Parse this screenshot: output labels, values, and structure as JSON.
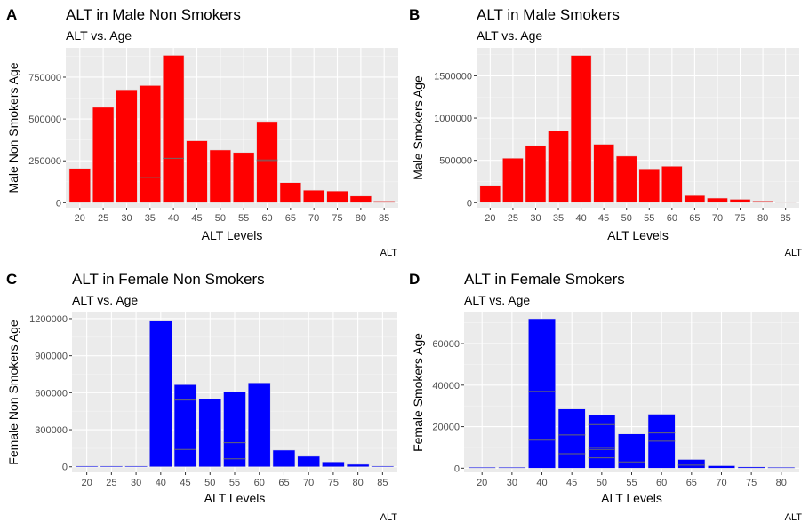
{
  "chart_data": [
    {
      "tag": "A",
      "type": "bar",
      "title": "ALT in Male Non Smokers",
      "subtitle": "ALT vs. Age",
      "xlabel": "ALT Levels",
      "ylabel": "Male Non Smokers Age",
      "caption": "ALT",
      "fill_color": "#ff0000",
      "categories": [
        "20",
        "25",
        "30",
        "35",
        "40",
        "45",
        "50",
        "55",
        "60",
        "65",
        "70",
        "75",
        "80",
        "85"
      ],
      "values": [
        205000,
        570000,
        675000,
        700000,
        880000,
        370000,
        315000,
        300000,
        485000,
        120000,
        75000,
        70000,
        40000,
        10000
      ],
      "ylim": [
        -30000,
        925000
      ],
      "yticks": [
        0,
        250000,
        500000,
        750000
      ],
      "ytick_labels": [
        "0",
        "250000",
        "500000",
        "750000"
      ],
      "inner_lines": [
        [
          3,
          150000
        ],
        [
          4,
          265000
        ],
        [
          8,
          245000
        ],
        [
          8,
          255000
        ]
      ],
      "grid": true
    },
    {
      "tag": "B",
      "type": "bar",
      "title": "ALT in Male Smokers",
      "subtitle": "ALT vs. Age",
      "xlabel": "ALT Levels",
      "ylabel": "Male Smokers Age",
      "caption": "ALT",
      "fill_color": "#ff0000",
      "categories": [
        "20",
        "25",
        "30",
        "35",
        "40",
        "45",
        "50",
        "55",
        "60",
        "65",
        "70",
        "75",
        "80",
        "85"
      ],
      "values": [
        205000,
        525000,
        675000,
        850000,
        1740000,
        690000,
        550000,
        400000,
        430000,
        85000,
        55000,
        40000,
        20000,
        8000
      ],
      "ylim": [
        -60000,
        1830000
      ],
      "yticks": [
        0,
        500000,
        1000000,
        1500000
      ],
      "ytick_labels": [
        "0",
        "500000",
        "1000000",
        "1500000"
      ],
      "inner_lines": [],
      "grid": true
    },
    {
      "tag": "C",
      "type": "bar",
      "title": "ALT in Female Non Smokers",
      "subtitle": "ALT vs. Age",
      "xlabel": "ALT Levels",
      "ylabel": "Female Non Smokers Age",
      "caption": "ALT",
      "fill_color": "#0000ff",
      "categories": [
        "20",
        "25",
        "30",
        "40",
        "45",
        "50",
        "55",
        "60",
        "65",
        "70",
        "75",
        "80",
        "85"
      ],
      "values": [
        3000,
        3000,
        3000,
        1180000,
        665000,
        550000,
        608000,
        680000,
        135000,
        85000,
        40000,
        20000,
        3000
      ],
      "ylim": [
        -45000,
        1250000
      ],
      "yticks": [
        0,
        300000,
        600000,
        900000,
        1200000
      ],
      "ytick_labels": [
        "0",
        "300000",
        "600000",
        "900000",
        "1200000"
      ],
      "inner_lines": [
        [
          4,
          540000
        ],
        [
          4,
          140000
        ],
        [
          6,
          195000
        ],
        [
          6,
          65000
        ]
      ],
      "grid": true
    },
    {
      "tag": "D",
      "type": "bar",
      "title": "ALT in Female Smokers",
      "subtitle": "ALT vs. Age",
      "xlabel": "ALT Levels",
      "ylabel": "Female Smokers Age",
      "caption": "ALT",
      "fill_color": "#0000ff",
      "categories": [
        "20",
        "30",
        "40",
        "45",
        "50",
        "55",
        "60",
        "65",
        "70",
        "75",
        "80"
      ],
      "values": [
        200,
        200,
        72000,
        28500,
        25500,
        16500,
        26000,
        4200,
        1200,
        600,
        200
      ],
      "ylim": [
        -2000,
        75000
      ],
      "yticks": [
        0,
        20000,
        40000,
        60000
      ],
      "ytick_labels": [
        "0",
        "20000",
        "40000",
        "60000"
      ],
      "inner_lines": [
        [
          2,
          37000
        ],
        [
          2,
          13500
        ],
        [
          3,
          16000
        ],
        [
          3,
          7000
        ],
        [
          4,
          21000
        ],
        [
          4,
          10000
        ],
        [
          4,
          9000
        ],
        [
          4,
          5000
        ],
        [
          5,
          3000
        ],
        [
          6,
          17000
        ],
        [
          6,
          13000
        ],
        [
          7,
          2500
        ],
        [
          7,
          1500
        ]
      ],
      "grid": true
    }
  ]
}
